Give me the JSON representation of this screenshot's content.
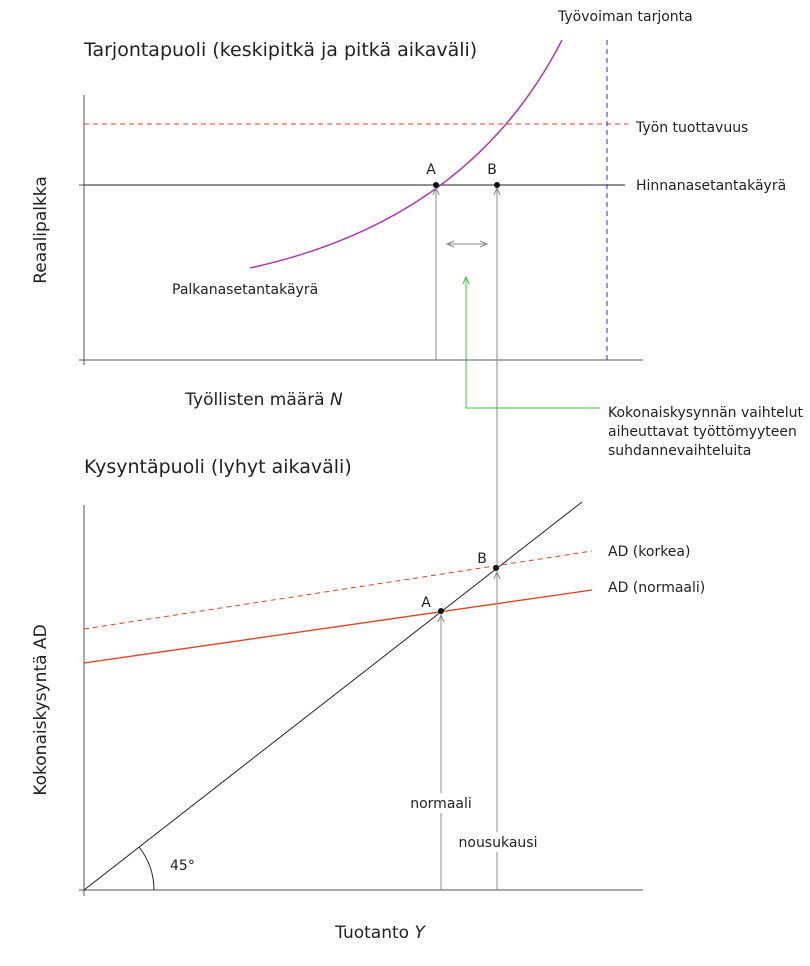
{
  "supply": {
    "title": "Tarjontapuoli (keskipitkä ja pitkä aikaväli)",
    "labor_supply": "Työvoiman tarjonta",
    "productivity": "Työn tuottavuus",
    "price_setting": "Hinnanasetantakäyrä",
    "wage_setting": "Palkanasetantakäyrä",
    "point_a": "A",
    "point_b": "B",
    "y_label": "Reaalipalkka",
    "x_label": {
      "text": "Työllisten määrä ",
      "symbol": "N"
    }
  },
  "note": {
    "lines": [
      "Kokonaiskysynnän vaihtelut",
      "aiheuttavat työttömyyteen",
      "suhdannevaihteluita"
    ]
  },
  "demand": {
    "title": "Kysyntäpuoli (lyhyt aikaväli)",
    "ad_high": "AD (korkea)",
    "ad_normal": "AD (normaali)",
    "point_a": "A",
    "point_b": "B",
    "normal": "normaali",
    "boom": "nousukausi",
    "angle": "45°",
    "y_label": "Kokonaiskysyntä AD",
    "x_label": {
      "text": "Tuotanto ",
      "symbol": "Y"
    }
  }
}
